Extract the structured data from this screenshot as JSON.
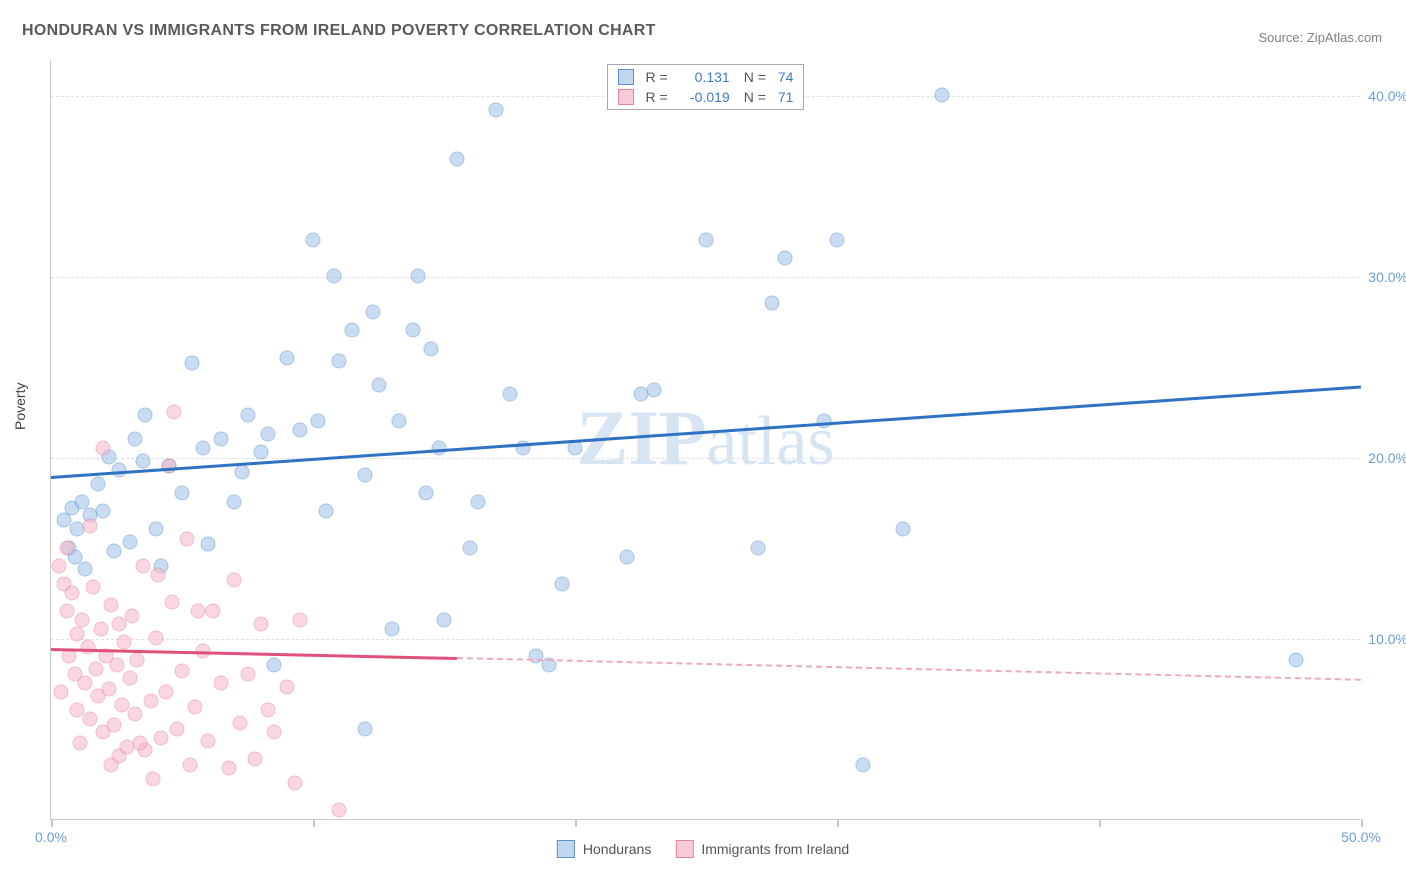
{
  "title": "HONDURAN VS IMMIGRANTS FROM IRELAND POVERTY CORRELATION CHART",
  "source": "Source: ZipAtlas.com",
  "watermark": "ZIPatlas",
  "ylabel": "Poverty",
  "chart": {
    "type": "scatter",
    "xlim": [
      0,
      50
    ],
    "ylim": [
      0,
      42
    ],
    "y_ticks": [
      10,
      20,
      30,
      40
    ],
    "y_tick_labels": [
      "10.0%",
      "20.0%",
      "30.0%",
      "40.0%"
    ],
    "x_ticks": [
      0,
      10,
      20,
      30,
      40,
      50
    ],
    "x_tick_labels_visible": {
      "0": "0.0%",
      "50": "50.0%"
    },
    "background_color": "#ffffff",
    "grid_color": "#e0e0e0",
    "axis_color": "#c8c8c8",
    "marker_radius": 7.5,
    "marker_opacity": 0.55,
    "series": [
      {
        "name": "Hondurans",
        "color_fill": "#9fc1e8",
        "color_border": "#5b93cf",
        "R": "0.131",
        "N": "74",
        "trend": {
          "x1": 0,
          "y1": 19.0,
          "x2": 50,
          "y2": 24.0,
          "color": "#2f72c4",
          "width": 3,
          "dashed": false
        },
        "points": [
          [
            0.5,
            16.5
          ],
          [
            0.7,
            15.0
          ],
          [
            0.8,
            17.2
          ],
          [
            0.9,
            14.5
          ],
          [
            1.0,
            16.0
          ],
          [
            1.2,
            17.5
          ],
          [
            1.3,
            13.8
          ],
          [
            1.5,
            16.8
          ],
          [
            1.8,
            18.5
          ],
          [
            2.0,
            17.0
          ],
          [
            2.2,
            20.0
          ],
          [
            2.4,
            14.8
          ],
          [
            2.6,
            19.3
          ],
          [
            3.0,
            15.3
          ],
          [
            3.2,
            21.0
          ],
          [
            3.5,
            19.8
          ],
          [
            3.6,
            22.3
          ],
          [
            4.0,
            16.0
          ],
          [
            4.5,
            19.5
          ],
          [
            5.0,
            18.0
          ],
          [
            5.4,
            25.2
          ],
          [
            5.8,
            20.5
          ],
          [
            6.5,
            21.0
          ],
          [
            7.0,
            17.5
          ],
          [
            7.3,
            19.2
          ],
          [
            7.5,
            22.3
          ],
          [
            8.0,
            20.3
          ],
          [
            8.3,
            21.3
          ],
          [
            8.5,
            8.5
          ],
          [
            9.0,
            25.5
          ],
          [
            9.5,
            21.5
          ],
          [
            10.0,
            32.0
          ],
          [
            10.2,
            22.0
          ],
          [
            10.5,
            17.0
          ],
          [
            10.8,
            30.0
          ],
          [
            11.0,
            25.3
          ],
          [
            11.5,
            27.0
          ],
          [
            12.0,
            19.0
          ],
          [
            12.3,
            28.0
          ],
          [
            12.5,
            24.0
          ],
          [
            13.0,
            10.5
          ],
          [
            13.3,
            22.0
          ],
          [
            13.8,
            27.0
          ],
          [
            14.0,
            30.0
          ],
          [
            14.3,
            18.0
          ],
          [
            14.5,
            26.0
          ],
          [
            14.8,
            20.5
          ],
          [
            15.0,
            11.0
          ],
          [
            15.5,
            36.5
          ],
          [
            16.0,
            15.0
          ],
          [
            16.3,
            17.5
          ],
          [
            17.0,
            39.2
          ],
          [
            17.5,
            23.5
          ],
          [
            18.0,
            20.5
          ],
          [
            18.5,
            9.0
          ],
          [
            19.0,
            8.5
          ],
          [
            19.5,
            13.0
          ],
          [
            20.0,
            20.5
          ],
          [
            22.0,
            14.5
          ],
          [
            22.5,
            23.5
          ],
          [
            23.0,
            23.7
          ],
          [
            25.0,
            32.0
          ],
          [
            27.0,
            15.0
          ],
          [
            27.5,
            28.5
          ],
          [
            28.0,
            31.0
          ],
          [
            29.5,
            22.0
          ],
          [
            30.0,
            32.0
          ],
          [
            31.0,
            3.0
          ],
          [
            32.5,
            16.0
          ],
          [
            34.0,
            40.0
          ],
          [
            47.5,
            8.8
          ],
          [
            12.0,
            5.0
          ],
          [
            6.0,
            15.2
          ],
          [
            4.2,
            14.0
          ]
        ]
      },
      {
        "name": "Immigrants from Ireland",
        "color_fill": "#f6b8c7",
        "color_border": "#e484a0",
        "R": "-0.019",
        "N": "71",
        "trend_solid": {
          "x1": 0,
          "y1": 9.5,
          "x2": 15.5,
          "y2": 9.0,
          "color": "#e0517a",
          "width": 3,
          "dashed": false
        },
        "trend_dashed": {
          "x1": 15.5,
          "y1": 9.0,
          "x2": 50,
          "y2": 7.8,
          "color": "#f0a8bc",
          "width": 2,
          "dashed": true
        },
        "points": [
          [
            0.3,
            14.0
          ],
          [
            0.5,
            13.0
          ],
          [
            0.6,
            11.5
          ],
          [
            0.7,
            9.0
          ],
          [
            0.8,
            12.5
          ],
          [
            0.9,
            8.0
          ],
          [
            1.0,
            10.2
          ],
          [
            1.0,
            6.0
          ],
          [
            1.2,
            11.0
          ],
          [
            1.3,
            7.5
          ],
          [
            1.4,
            9.5
          ],
          [
            1.5,
            5.5
          ],
          [
            1.6,
            12.8
          ],
          [
            1.7,
            8.3
          ],
          [
            1.8,
            6.8
          ],
          [
            1.9,
            10.5
          ],
          [
            2.0,
            4.8
          ],
          [
            2.1,
            9.0
          ],
          [
            2.2,
            7.2
          ],
          [
            2.3,
            11.8
          ],
          [
            2.4,
            5.2
          ],
          [
            2.5,
            8.5
          ],
          [
            2.6,
            3.5
          ],
          [
            2.7,
            6.3
          ],
          [
            2.8,
            9.8
          ],
          [
            2.9,
            4.0
          ],
          [
            3.0,
            7.8
          ],
          [
            3.1,
            11.2
          ],
          [
            3.2,
            5.8
          ],
          [
            3.3,
            8.8
          ],
          [
            3.5,
            14.0
          ],
          [
            3.6,
            3.8
          ],
          [
            3.8,
            6.5
          ],
          [
            4.0,
            10.0
          ],
          [
            4.2,
            4.5
          ],
          [
            4.4,
            7.0
          ],
          [
            4.5,
            19.5
          ],
          [
            4.6,
            12.0
          ],
          [
            4.7,
            22.5
          ],
          [
            4.8,
            5.0
          ],
          [
            5.0,
            8.2
          ],
          [
            5.2,
            15.5
          ],
          [
            5.3,
            3.0
          ],
          [
            5.5,
            6.2
          ],
          [
            5.8,
            9.3
          ],
          [
            6.0,
            4.3
          ],
          [
            6.2,
            11.5
          ],
          [
            6.5,
            7.5
          ],
          [
            6.8,
            2.8
          ],
          [
            7.0,
            13.2
          ],
          [
            7.2,
            5.3
          ],
          [
            7.5,
            8.0
          ],
          [
            7.8,
            3.3
          ],
          [
            8.0,
            10.8
          ],
          [
            8.3,
            6.0
          ],
          [
            8.5,
            4.8
          ],
          [
            9.0,
            7.3
          ],
          [
            9.3,
            2.0
          ],
          [
            9.5,
            11.0
          ],
          [
            11.0,
            0.5
          ],
          [
            2.0,
            20.5
          ],
          [
            1.5,
            16.2
          ],
          [
            0.6,
            15.0
          ],
          [
            3.4,
            4.2
          ],
          [
            4.1,
            13.5
          ],
          [
            2.6,
            10.8
          ],
          [
            1.1,
            4.2
          ],
          [
            0.4,
            7.0
          ],
          [
            3.9,
            2.2
          ],
          [
            5.6,
            11.5
          ],
          [
            2.3,
            3.0
          ]
        ]
      }
    ]
  },
  "colors": {
    "title": "#5a5a5a",
    "source": "#808080",
    "tick_label": "#6a9ed4"
  }
}
